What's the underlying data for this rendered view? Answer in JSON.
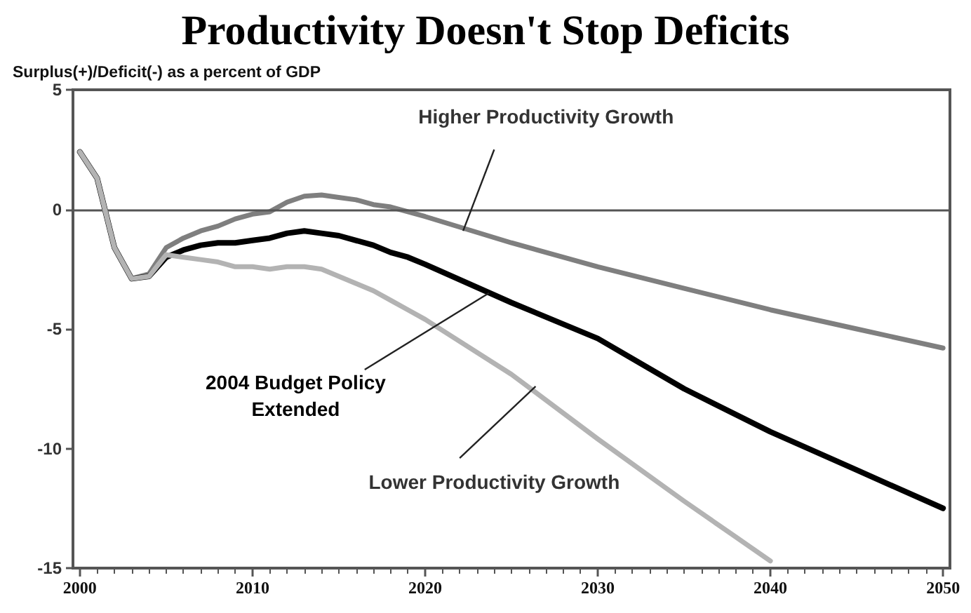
{
  "chart_data": {
    "type": "line",
    "title": "Productivity Doesn't Stop Deficits",
    "ylabel": "Surplus(+)/Deficit(-) as a percent of GDP",
    "x": [
      2000,
      2001,
      2002,
      2003,
      2004,
      2005,
      2006,
      2007,
      2008,
      2009,
      2010,
      2011,
      2012,
      2013,
      2014,
      2015,
      2016,
      2017,
      2018,
      2019,
      2020,
      2025,
      2030,
      2035,
      2040,
      2045,
      2050
    ],
    "series": [
      {
        "name": "Higher Productivity Growth",
        "color": "#7f7f7f",
        "values": [
          2.4,
          1.3,
          -1.6,
          -2.9,
          -2.7,
          -1.6,
          -1.2,
          -0.9,
          -0.7,
          -0.4,
          -0.2,
          -0.1,
          0.3,
          0.55,
          0.6,
          0.5,
          0.4,
          0.2,
          0.1,
          -0.1,
          -0.3,
          -1.4,
          -2.4,
          -3.3,
          -4.2,
          -5.0,
          -5.8
        ]
      },
      {
        "name": "2004 Budget Policy Extended",
        "color": "#000000",
        "values": [
          2.4,
          1.3,
          -1.6,
          -2.9,
          -2.8,
          -2.0,
          -1.7,
          -1.5,
          -1.4,
          -1.4,
          -1.3,
          -1.2,
          -1.0,
          -0.9,
          -1.0,
          -1.1,
          -1.3,
          -1.5,
          -1.8,
          -2.0,
          -2.3,
          -3.9,
          -5.4,
          -7.5,
          -9.3,
          -10.9,
          -12.5
        ]
      },
      {
        "name": "Lower Productivity Growth",
        "color": "#b3b3b3",
        "values": [
          2.4,
          1.3,
          -1.6,
          -2.9,
          -2.8,
          -1.9,
          -2.0,
          -2.1,
          -2.2,
          -2.4,
          -2.4,
          -2.5,
          -2.4,
          -2.4,
          -2.5,
          -2.8,
          -3.1,
          -3.4,
          -3.8,
          -4.2,
          -4.6,
          -6.9,
          -9.6,
          -12.2,
          -14.7,
          null,
          null
        ]
      }
    ],
    "xlim": [
      1999.6,
      2050.4
    ],
    "xticks": [
      2000,
      2010,
      2020,
      2030,
      2040,
      2050
    ],
    "ylim": [
      -15,
      5
    ],
    "yticks": [
      -15,
      -10,
      -5,
      0,
      5
    ],
    "ref_lines": [
      {
        "axis": "y",
        "value": 0,
        "color": "#555555"
      }
    ],
    "grid": false,
    "legend": false,
    "marker": "none",
    "line_style": "solid"
  }
}
